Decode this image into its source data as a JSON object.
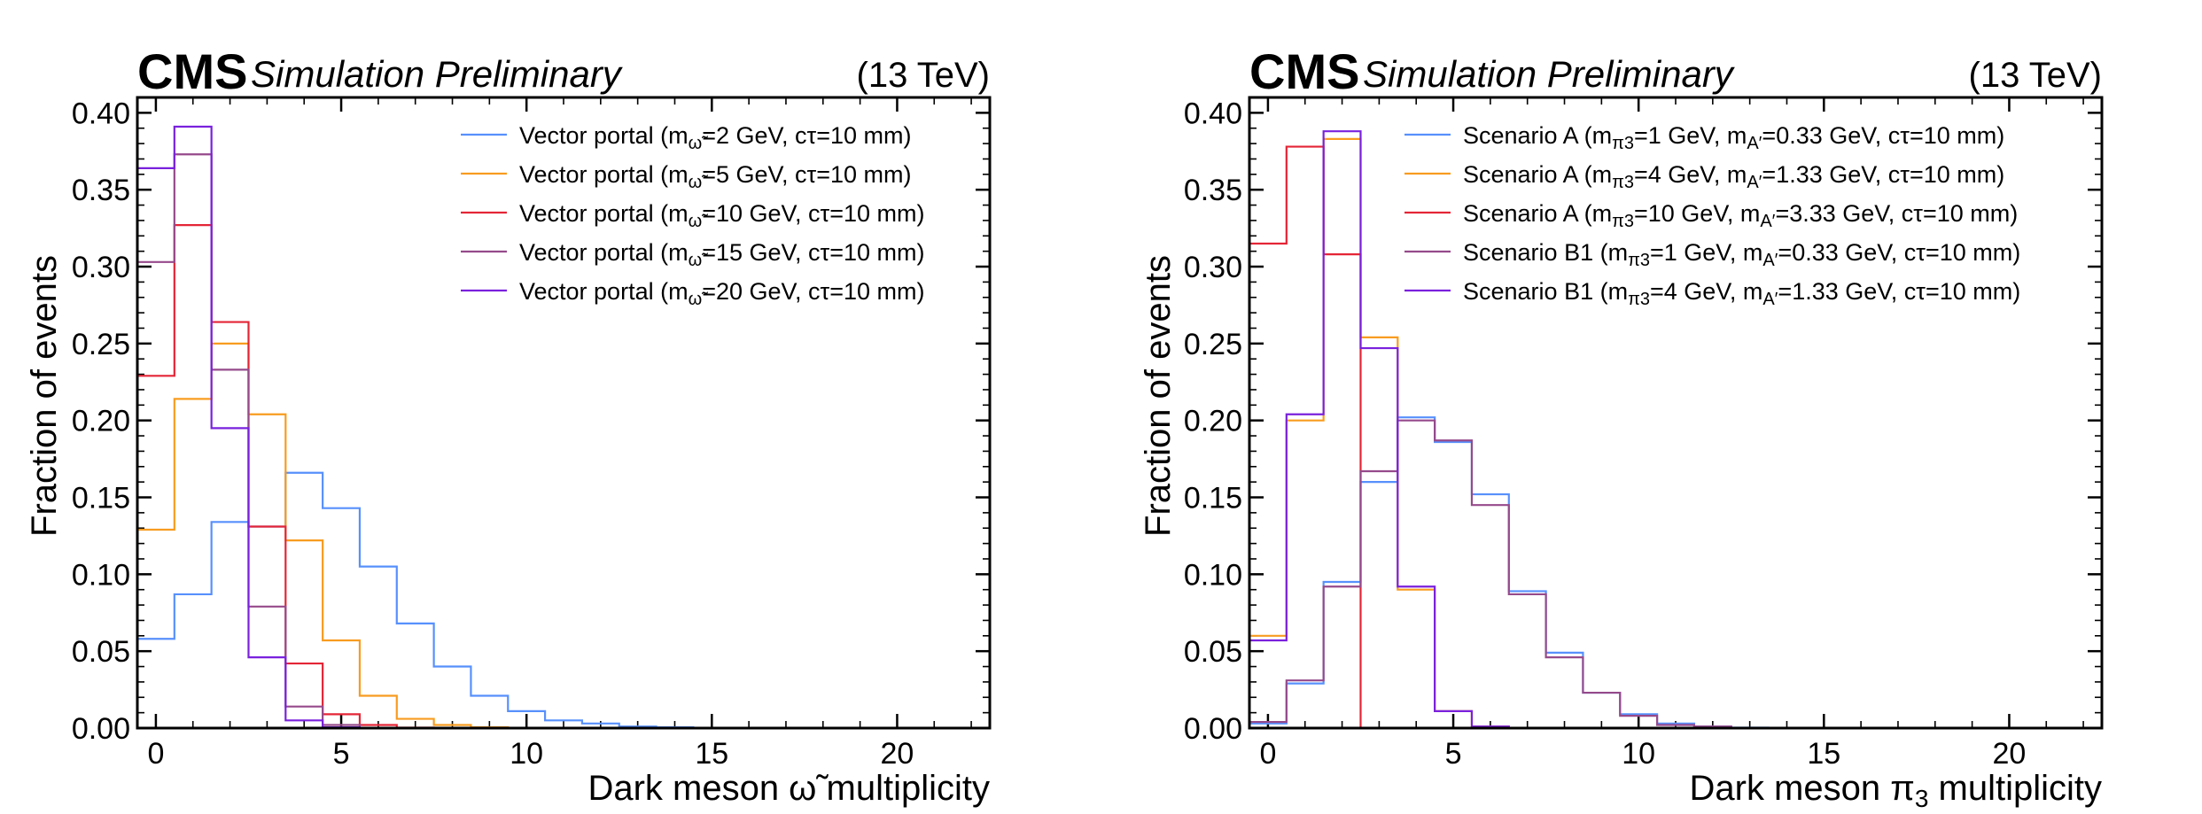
{
  "chart_data": [
    {
      "type": "step-histogram",
      "cms_label": "CMS",
      "status_label": "Simulation Preliminary",
      "energy_label": "(13 TeV)",
      "xlabel": "Dark meson ω̃ multiplicity",
      "ylabel": "Fraction of events",
      "xlim": [
        -0.5,
        22.5
      ],
      "ylim": [
        0,
        0.41
      ],
      "xticks": [
        0,
        5,
        10,
        15,
        20
      ],
      "yticks": [
        0.0,
        0.05,
        0.1,
        0.15,
        0.2,
        0.25,
        0.3,
        0.35,
        0.4
      ],
      "ytick_labels": [
        "0.00",
        "0.05",
        "0.10",
        "0.15",
        "0.20",
        "0.25",
        "0.30",
        "0.35",
        "0.40"
      ],
      "bin_edges_start": -0.5,
      "bin_width": 1,
      "series": [
        {
          "name": "Vector portal (mω̃=2 GeV, cτ=10 mm)",
          "legend": {
            "pre": "Vector portal (m",
            "sub": "ω̃",
            "post": "=2 GeV, cτ=10 mm)"
          },
          "color": "#5790fc",
          "values": [
            0.058,
            0.087,
            0.134,
            0.131,
            0.166,
            0.143,
            0.105,
            0.068,
            0.04,
            0.021,
            0.011,
            0.005,
            0.003,
            0.001,
            0.0005,
            0.0002
          ]
        },
        {
          "name": "Vector portal (mω̃=5 GeV, cτ=10 mm)",
          "legend": {
            "pre": "Vector portal (m",
            "sub": "ω̃",
            "post": "=5 GeV, cτ=10 mm)"
          },
          "color": "#f89c20",
          "values": [
            0.129,
            0.214,
            0.25,
            0.204,
            0.122,
            0.057,
            0.021,
            0.006,
            0.002,
            0.0005
          ]
        },
        {
          "name": "Vector portal (mω̃=10 GeV, cτ=10 mm)",
          "legend": {
            "pre": "Vector portal (m",
            "sub": "ω̃",
            "post": "=10 GeV, cτ=10 mm)"
          },
          "color": "#e42536",
          "values": [
            0.229,
            0.327,
            0.264,
            0.131,
            0.042,
            0.009,
            0.002,
            0.0003
          ]
        },
        {
          "name": "Vector portal (mω̃=15 GeV, cτ=10 mm)",
          "legend": {
            "pre": "Vector portal (m",
            "sub": "ω̃",
            "post": "=15 GeV, cτ=10 mm)"
          },
          "color": "#964a8b",
          "values": [
            0.303,
            0.373,
            0.233,
            0.079,
            0.014,
            0.002,
            0.0002
          ]
        },
        {
          "name": "Vector portal (mω̃=20 GeV, cτ=10 mm)",
          "legend": {
            "pre": "Vector portal (m",
            "sub": "ω̃",
            "post": "=20 GeV, cτ=10 mm)"
          },
          "color": "#7a21dd",
          "values": [
            0.364,
            0.391,
            0.195,
            0.046,
            0.005,
            0.0005
          ]
        }
      ]
    },
    {
      "type": "step-histogram",
      "cms_label": "CMS",
      "status_label": "Simulation Preliminary",
      "energy_label": "(13 TeV)",
      "xlabel": "Dark meson π3 multiplicity",
      "ylabel": "Fraction of events",
      "xlim": [
        -0.5,
        22.5
      ],
      "ylim": [
        0,
        0.41
      ],
      "xticks": [
        0,
        5,
        10,
        15,
        20
      ],
      "yticks": [
        0.0,
        0.05,
        0.1,
        0.15,
        0.2,
        0.25,
        0.3,
        0.35,
        0.4
      ],
      "ytick_labels": [
        "0.00",
        "0.05",
        "0.10",
        "0.15",
        "0.20",
        "0.25",
        "0.30",
        "0.35",
        "0.40"
      ],
      "bin_edges_start": -0.5,
      "bin_width": 1,
      "series": [
        {
          "name": "Scenario A (mπ3=1 GeV, mA′=0.33 GeV, cτ=10 mm)",
          "legend": {
            "pre": "Scenario A (m",
            "sub": "π3",
            "mid": "=1 GeV, m",
            "sub2": "A′",
            "post": "=0.33 GeV, cτ=10 mm)"
          },
          "color": "#5790fc",
          "values": [
            0.003,
            0.029,
            0.095,
            0.16,
            0.202,
            0.186,
            0.152,
            0.089,
            0.049,
            0.023,
            0.009,
            0.003,
            0.001,
            0.0003
          ]
        },
        {
          "name": "Scenario A (mπ3=4 GeV, mA′=1.33 GeV, cτ=10 mm)",
          "legend": {
            "pre": "Scenario A (m",
            "sub": "π3",
            "mid": "=4 GeV, m",
            "sub2": "A′",
            "post": "=1.33 GeV, cτ=10 mm)"
          },
          "color": "#f89c20",
          "values": [
            0.06,
            0.2,
            0.383,
            0.254,
            0.09,
            0.011,
            0.001
          ]
        },
        {
          "name": "Scenario A (mπ3=10 GeV, mA′=3.33 GeV, cτ=10 mm)",
          "legend": {
            "pre": "Scenario A (m",
            "sub": "π3",
            "mid": "=10 GeV, m",
            "sub2": "A′",
            "post": "=3.33 GeV, cτ=10 mm)"
          },
          "color": "#e42536",
          "values": [
            0.315,
            0.378,
            0.308
          ]
        },
        {
          "name": "Scenario B1 (mπ3=1 GeV, mA′=0.33 GeV, cτ=10 mm)",
          "legend": {
            "pre": "Scenario B1 (m",
            "sub": "π3",
            "mid": "=1 GeV, m",
            "sub2": "A′",
            "post": "=0.33 GeV, cτ=10 mm)"
          },
          "color": "#964a8b",
          "values": [
            0.004,
            0.031,
            0.092,
            0.167,
            0.2,
            0.187,
            0.145,
            0.087,
            0.046,
            0.023,
            0.008,
            0.002,
            0.001,
            0.0002
          ]
        },
        {
          "name": "Scenario B1 (mπ3=4 GeV, mA′=1.33 GeV, cτ=10 mm)",
          "legend": {
            "pre": "Scenario B1 (m",
            "sub": "π3",
            "mid": "=4 GeV, m",
            "sub2": "A′",
            "post": "=1.33 GeV, cτ=10 mm)"
          },
          "color": "#7a21dd",
          "values": [
            0.057,
            0.204,
            0.388,
            0.247,
            0.092,
            0.011,
            0.001
          ]
        }
      ]
    }
  ]
}
